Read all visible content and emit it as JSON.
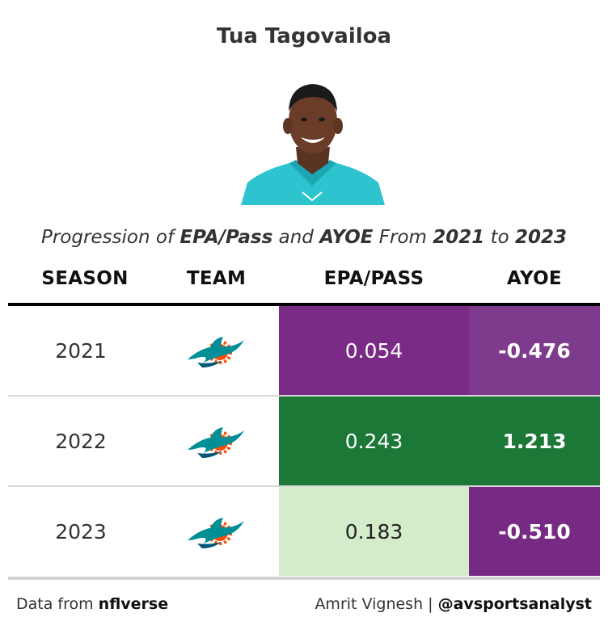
{
  "title": "Tua Tagovailoa",
  "subtitle": {
    "prefix": "Progression of ",
    "metric1": "EPA/Pass",
    "and": " and ",
    "metric2": "AYOE",
    "from": " From ",
    "start": "2021",
    "to": " to ",
    "end": "2023"
  },
  "headers": {
    "season": "SEASON",
    "team": "TEAM",
    "epa": "EPA/PASS",
    "ayoe": "AYOE"
  },
  "chart_data": {
    "type": "table",
    "columns": [
      "SEASON",
      "TEAM",
      "EPA/PASS",
      "AYOE"
    ],
    "rows": [
      {
        "season": "2021",
        "team": "dolphins-logo-icon",
        "epa": "0.054",
        "ayoe": "-0.476",
        "epa_bg": "#7a2b86",
        "epa_fg": "#ffffff",
        "ayoe_bg": "#7e3a8c",
        "ayoe_fg": "#ffffff"
      },
      {
        "season": "2022",
        "team": "dolphins-logo-icon",
        "epa": "0.243",
        "ayoe": "1.213",
        "epa_bg": "#1b7837",
        "epa_fg": "#ffffff",
        "ayoe_bg": "#1b7837",
        "ayoe_fg": "#ffffff"
      },
      {
        "season": "2023",
        "team": "dolphins-logo-icon",
        "epa": "0.183",
        "ayoe": "-0.510",
        "epa_bg": "#d4ecca",
        "epa_fg": "#222222",
        "ayoe_bg": "#762a83",
        "ayoe_fg": "#ffffff"
      }
    ]
  },
  "footer": {
    "data_prefix": "Data from ",
    "data_source": "nflverse",
    "author": "Amrit Vignesh | ",
    "handle": "@avsportsanalyst"
  },
  "colors": {
    "aqua": "#008e97",
    "orange": "#fc4c02",
    "text": "#333333"
  }
}
